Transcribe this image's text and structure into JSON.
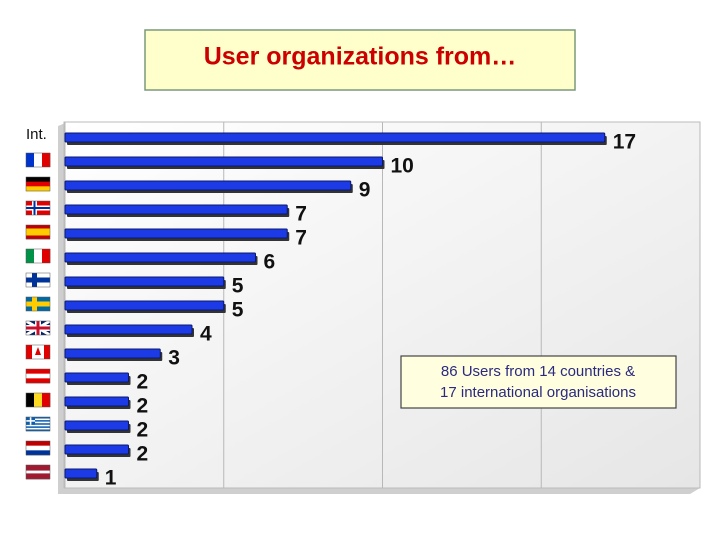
{
  "chart_data": {
    "type": "barh",
    "title": "User organizations from…",
    "categories": [
      "Int.",
      null,
      null,
      null,
      null,
      null,
      null,
      null,
      null,
      null,
      null,
      null,
      null,
      null,
      null
    ],
    "values": [
      17,
      10,
      9,
      7,
      7,
      6,
      5,
      5,
      4,
      3,
      2,
      2,
      2,
      2,
      1
    ],
    "color": "#1c3be6",
    "xlim": [
      0,
      20
    ],
    "xticks": [
      0,
      5,
      10,
      15,
      20
    ],
    "grid": true,
    "annotation": [
      "86 Users from 14 countries &",
      "17 international organisations"
    ]
  }
}
